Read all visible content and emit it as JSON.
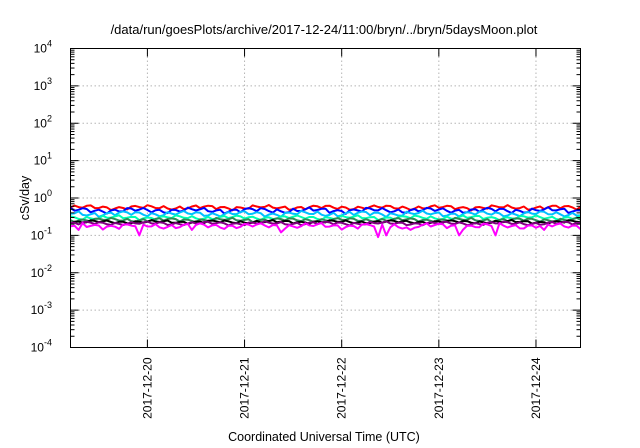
{
  "chart_data": {
    "type": "line",
    "title": "/data/run/goesPlots/archive/2017-12-24/11:00/bryn/../bryn/5daysMoon.plot",
    "xlabel": "Coordinated Universal Time (UTC)",
    "ylabel": "cSv/day",
    "yscale": "log",
    "ylim": [
      0.0001,
      10000
    ],
    "y_ticks": [
      {
        "value": 0.0001,
        "base": "10",
        "exp": "-4"
      },
      {
        "value": 0.001,
        "base": "10",
        "exp": "-3"
      },
      {
        "value": 0.01,
        "base": "10",
        "exp": "-2"
      },
      {
        "value": 0.1,
        "base": "10",
        "exp": "-1"
      },
      {
        "value": 1,
        "base": "10",
        "exp": "0"
      },
      {
        "value": 10,
        "base": "10",
        "exp": "1"
      },
      {
        "value": 100,
        "base": "10",
        "exp": "2"
      },
      {
        "value": 1000,
        "base": "10",
        "exp": "3"
      },
      {
        "value": 10000,
        "base": "10",
        "exp": "4"
      }
    ],
    "xlim": [
      "2017-12-19T05:00",
      "2017-12-24T11:00"
    ],
    "x_ticks": [
      {
        "value": "2017-12-20T00:00",
        "label": "2017-12-20"
      },
      {
        "value": "2017-12-21T00:00",
        "label": "2017-12-21"
      },
      {
        "value": "2017-12-22T00:00",
        "label": "2017-12-22"
      },
      {
        "value": "2017-12-23T00:00",
        "label": "2017-12-23"
      },
      {
        "value": "2017-12-24T00:00",
        "label": "2017-12-24"
      }
    ],
    "grid": true,
    "legend": "none",
    "series": [
      {
        "color": "#ff0000",
        "level": 0.56,
        "jitter": 0.1,
        "dips": []
      },
      {
        "color": "#0000ff",
        "level": 0.47,
        "jitter": 0.1,
        "dips": []
      },
      {
        "color": "#00bfff",
        "level": 0.38,
        "jitter": 0.08,
        "dips": []
      },
      {
        "color": "#00ffb3",
        "level": 0.3,
        "jitter": 0.05,
        "dips": []
      },
      {
        "color": "#2e8b57",
        "level": 0.26,
        "jitter": 0.04,
        "dips": []
      },
      {
        "color": "#000000",
        "level": 0.23,
        "jitter": 0.03,
        "dips": []
      },
      {
        "color": "#800080",
        "level": 0.21,
        "jitter": 0.03,
        "dips": []
      },
      {
        "color": "#ff00ff",
        "level": 0.18,
        "jitter": 0.04,
        "dips": [
          {
            "x": "2017-12-19T07:00",
            "y": 0.14
          },
          {
            "x": "2017-12-19T22:10",
            "y": 0.1
          },
          {
            "x": "2017-12-20T11:00",
            "y": 0.14
          },
          {
            "x": "2017-12-21T08:30",
            "y": 0.12
          },
          {
            "x": "2017-12-22T09:10",
            "y": 0.09
          },
          {
            "x": "2017-12-22T11:10",
            "y": 0.1
          },
          {
            "x": "2017-12-22T17:00",
            "y": 0.14
          },
          {
            "x": "2017-12-23T04:40",
            "y": 0.1
          },
          {
            "x": "2017-12-23T14:00",
            "y": 0.1
          },
          {
            "x": "2017-12-24T02:00",
            "y": 0.14
          }
        ]
      }
    ]
  }
}
